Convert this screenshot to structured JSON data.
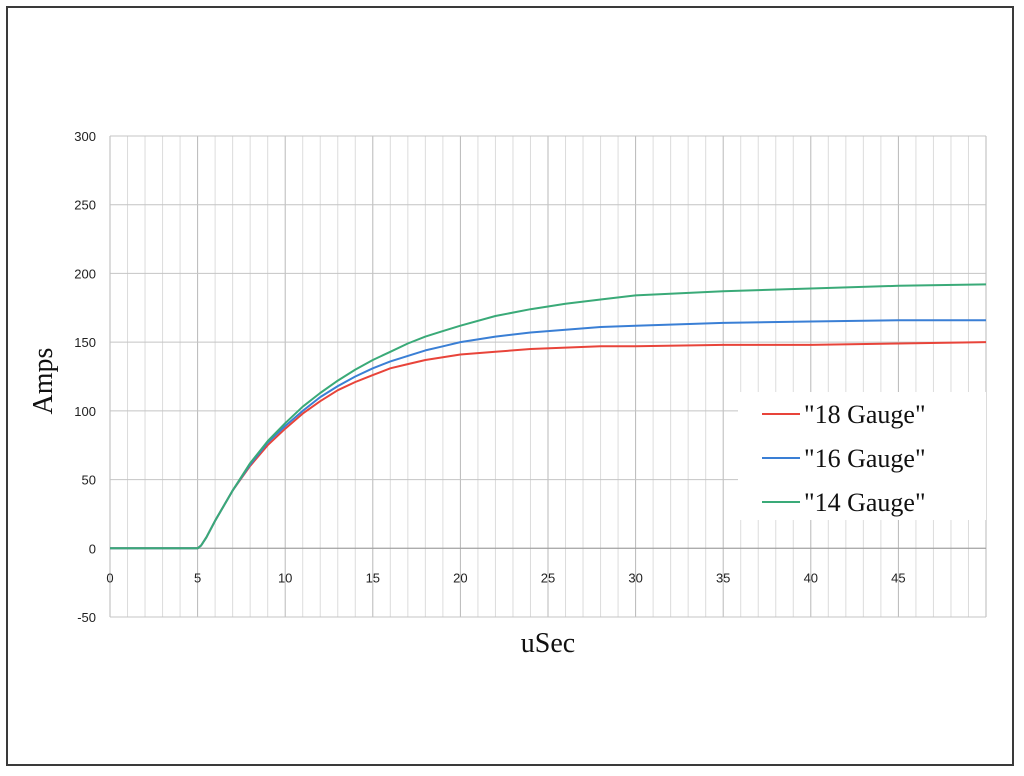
{
  "chart_data": {
    "type": "line",
    "title": "",
    "xlabel": "uSec",
    "ylabel": "Amps",
    "xlim": [
      0,
      50
    ],
    "ylim": [
      -50,
      300
    ],
    "x_ticks": [
      0,
      5,
      10,
      15,
      20,
      25,
      30,
      35,
      40,
      45
    ],
    "y_ticks": [
      -50,
      0,
      50,
      100,
      150,
      200,
      250,
      300
    ],
    "grid": true,
    "legend_position": "right",
    "series": [
      {
        "name": "\"18 Gauge\"",
        "color": "#e8443a",
        "points": [
          [
            0,
            0
          ],
          [
            5,
            0
          ],
          [
            5.2,
            2
          ],
          [
            5.5,
            8
          ],
          [
            6,
            20
          ],
          [
            7,
            42
          ],
          [
            8,
            60
          ],
          [
            9,
            75
          ],
          [
            10,
            87
          ],
          [
            11,
            98
          ],
          [
            12,
            107
          ],
          [
            13,
            115
          ],
          [
            14,
            121
          ],
          [
            15,
            126
          ],
          [
            16,
            131
          ],
          [
            17,
            134
          ],
          [
            18,
            137
          ],
          [
            19,
            139
          ],
          [
            20,
            141
          ],
          [
            22,
            143
          ],
          [
            24,
            145
          ],
          [
            26,
            146
          ],
          [
            28,
            147
          ],
          [
            30,
            147
          ],
          [
            35,
            148
          ],
          [
            40,
            148
          ],
          [
            45,
            149
          ],
          [
            50,
            150
          ]
        ]
      },
      {
        "name": "\"16 Gauge\"",
        "color": "#3a7fd5",
        "points": [
          [
            0,
            0
          ],
          [
            5,
            0
          ],
          [
            5.2,
            2
          ],
          [
            5.5,
            8
          ],
          [
            6,
            20
          ],
          [
            7,
            42
          ],
          [
            8,
            61
          ],
          [
            9,
            77
          ],
          [
            10,
            89
          ],
          [
            11,
            100
          ],
          [
            12,
            110
          ],
          [
            13,
            118
          ],
          [
            14,
            125
          ],
          [
            15,
            131
          ],
          [
            16,
            136
          ],
          [
            17,
            140
          ],
          [
            18,
            144
          ],
          [
            19,
            147
          ],
          [
            20,
            150
          ],
          [
            22,
            154
          ],
          [
            24,
            157
          ],
          [
            26,
            159
          ],
          [
            28,
            161
          ],
          [
            30,
            162
          ],
          [
            35,
            164
          ],
          [
            40,
            165
          ],
          [
            45,
            166
          ],
          [
            50,
            166
          ]
        ]
      },
      {
        "name": "\"14 Gauge\"",
        "color": "#3aaa78",
        "points": [
          [
            0,
            0
          ],
          [
            5,
            0
          ],
          [
            5.2,
            2
          ],
          [
            5.5,
            8
          ],
          [
            6,
            20
          ],
          [
            7,
            42
          ],
          [
            8,
            62
          ],
          [
            9,
            78
          ],
          [
            10,
            91
          ],
          [
            11,
            103
          ],
          [
            12,
            113
          ],
          [
            13,
            122
          ],
          [
            14,
            130
          ],
          [
            15,
            137
          ],
          [
            16,
            143
          ],
          [
            17,
            149
          ],
          [
            18,
            154
          ],
          [
            19,
            158
          ],
          [
            20,
            162
          ],
          [
            22,
            169
          ],
          [
            24,
            174
          ],
          [
            26,
            178
          ],
          [
            28,
            181
          ],
          [
            30,
            184
          ],
          [
            35,
            187
          ],
          [
            40,
            189
          ],
          [
            45,
            191
          ],
          [
            50,
            192
          ]
        ]
      }
    ]
  }
}
